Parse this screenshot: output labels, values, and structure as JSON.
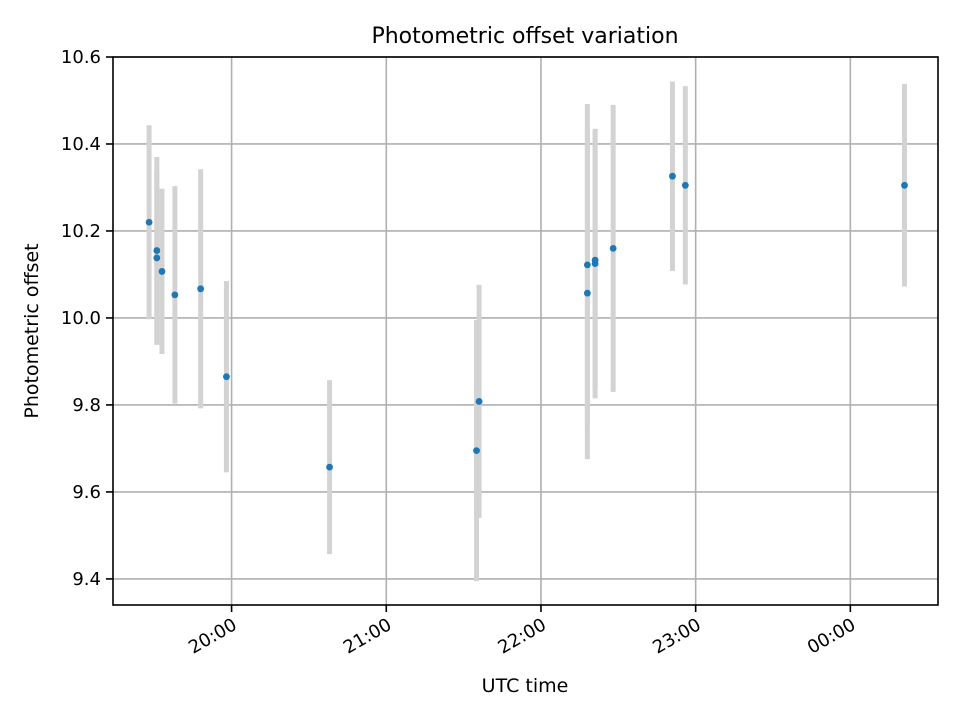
{
  "chart_data": {
    "type": "scatter",
    "title": "Photometric offset variation",
    "xlabel": "UTC time",
    "ylabel": "Photometric offset",
    "x_ticks": [
      "20:00",
      "21:00",
      "22:00",
      "23:00",
      "00:00"
    ],
    "y_ticks": [
      "9.4",
      "9.6",
      "9.8",
      "10.0",
      "10.2",
      "10.4",
      "10.6"
    ],
    "xlim": [
      "19:14",
      "00:34"
    ],
    "ylim": [
      9.34,
      10.6
    ],
    "grid": true,
    "errorbar_color": "#d3d3d3",
    "marker_color": "#1f77b4",
    "points": [
      {
        "x": "19:28",
        "y": 10.22,
        "err": 0.223
      },
      {
        "x": "19:31",
        "y": 10.155,
        "err": 0.215
      },
      {
        "x": "19:31",
        "y": 10.138,
        "err": 0.2
      },
      {
        "x": "19:33",
        "y": 10.107,
        "err": 0.19
      },
      {
        "x": "19:38",
        "y": 10.053,
        "err": 0.25
      },
      {
        "x": "19:48",
        "y": 10.067,
        "err": 0.275
      },
      {
        "x": "19:58",
        "y": 9.865,
        "err": 0.22
      },
      {
        "x": "20:38",
        "y": 9.657,
        "err": 0.2
      },
      {
        "x": "21:35",
        "y": 9.695,
        "err": 0.3
      },
      {
        "x": "21:36",
        "y": 9.808,
        "err": 0.268
      },
      {
        "x": "22:18",
        "y": 10.122,
        "err": 0.37
      },
      {
        "x": "22:18",
        "y": 10.057,
        "err": 0.382
      },
      {
        "x": "22:21",
        "y": 10.125,
        "err": 0.31
      },
      {
        "x": "22:21",
        "y": 10.133,
        "err": 0.295
      },
      {
        "x": "22:28",
        "y": 10.16,
        "err": 0.33
      },
      {
        "x": "22:51",
        "y": 10.326,
        "err": 0.218
      },
      {
        "x": "22:56",
        "y": 10.305,
        "err": 0.228
      },
      {
        "x": "00:21",
        "y": 10.305,
        "err": 0.233
      }
    ]
  }
}
